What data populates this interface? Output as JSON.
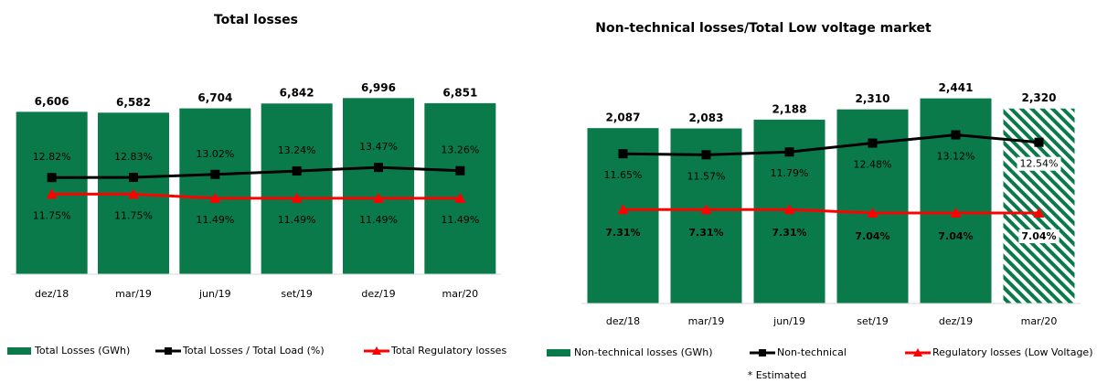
{
  "chart_data": [
    {
      "type": "bar_line",
      "title": "Total losses",
      "categories": [
        "dez/18",
        "mar/19",
        "jun/19",
        "set/19",
        "dez/19",
        "mar/20"
      ],
      "bar": {
        "name": "Total Losses (GWh)",
        "color": "#0b7a4b",
        "values": [
          6606,
          6582,
          6704,
          6842,
          6996,
          6851
        ],
        "value_labels": [
          "6,606",
          "6,582",
          "6,704",
          "6,842",
          "6,996",
          "6,851"
        ]
      },
      "series": [
        {
          "name": "Total Losses / Total Load (%)",
          "color": "#000000",
          "axis": "y2",
          "values": [
            12.82,
            12.83,
            13.02,
            13.24,
            13.47,
            13.26
          ],
          "value_labels": [
            "12.82%",
            "12.83%",
            "13.02%",
            "13.24%",
            "13.47%",
            "13.26%"
          ]
        },
        {
          "name": "Total Regulatory losses",
          "color": "#ff0000",
          "axis": "y2",
          "values": [
            11.75,
            11.75,
            11.49,
            11.49,
            11.49,
            11.49
          ],
          "value_labels": [
            "11.75%",
            "11.75%",
            "11.49%",
            "11.49%",
            "11.49%",
            "11.49%"
          ]
        }
      ],
      "ylim": [
        2000,
        7600
      ],
      "y2lim": [
        6.6,
        19.3
      ]
    },
    {
      "type": "bar_line",
      "title": "Non-technical losses/Total Low voltage market",
      "categories": [
        "dez/18",
        "mar/19",
        "jun/19",
        "set/19",
        "dez/19",
        "mar/20"
      ],
      "bar": {
        "name": "Non-technical losses (GWh)",
        "color": "#0b7a4b",
        "values": [
          2087,
          2083,
          2188,
          2310,
          2441,
          2320
        ],
        "value_labels": [
          "2,087",
          "2,083",
          "2,188",
          "2,310",
          "2,441",
          "2,320"
        ],
        "estimated": [
          false,
          false,
          false,
          false,
          false,
          true
        ]
      },
      "series": [
        {
          "name": "Non-technical",
          "color": "#000000",
          "axis": "y2",
          "values": [
            11.65,
            11.57,
            11.79,
            12.48,
            13.12,
            12.54
          ],
          "value_labels": [
            "11.65%",
            "11.57%",
            "11.79%",
            "12.48%",
            "13.12%",
            "12.54%"
          ]
        },
        {
          "name": "Regulatory losses (Low Voltage)",
          "color": "#ff0000",
          "axis": "y2",
          "values": [
            7.31,
            7.31,
            7.31,
            7.04,
            7.04,
            7.04
          ],
          "value_labels": [
            "7.31%",
            "7.31%",
            "7.31%",
            "7.04%",
            "7.04%",
            "7.04%"
          ]
        }
      ],
      "ylim": [
        0,
        2600
      ],
      "y2lim": [
        0,
        17
      ],
      "footnote": "* Estimated"
    }
  ]
}
